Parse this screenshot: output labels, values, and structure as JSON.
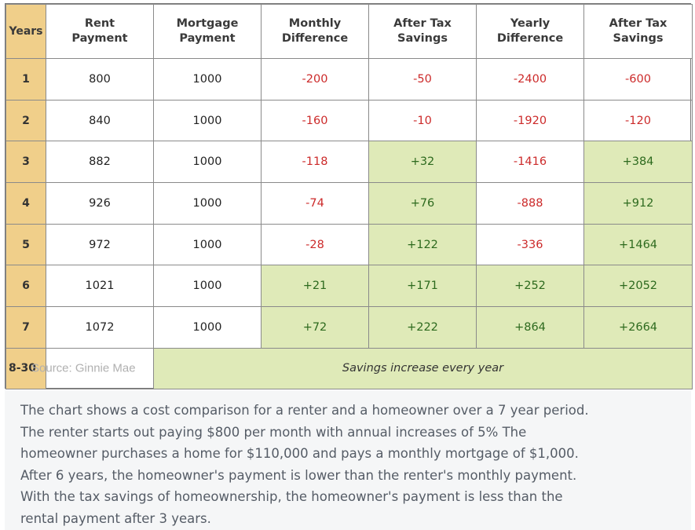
{
  "table": {
    "headers": {
      "years": "Years",
      "rent": [
        "Rent",
        "Payment"
      ],
      "mortgage": [
        "Mortgage",
        "Payment"
      ],
      "monthly_diff": [
        "Monthly",
        "Difference"
      ],
      "after_tax_1": [
        "After Tax",
        "Savings"
      ],
      "yearly_diff": [
        "Yearly",
        "Difference"
      ],
      "after_tax_2": [
        "After Tax",
        "Savings"
      ]
    },
    "rows": [
      {
        "year": "1",
        "rent": "800",
        "mortgage": "1000",
        "monthly_diff": "-200",
        "after_tax_1": "-50",
        "yearly_diff": "-2400",
        "after_tax_2": "-600"
      },
      {
        "year": "2",
        "rent": "840",
        "mortgage": "1000",
        "monthly_diff": "-160",
        "after_tax_1": "-10",
        "yearly_diff": "-1920",
        "after_tax_2": "-120"
      },
      {
        "year": "3",
        "rent": "882",
        "mortgage": "1000",
        "monthly_diff": "-118",
        "after_tax_1": "+32",
        "yearly_diff": "-1416",
        "after_tax_2": "+384"
      },
      {
        "year": "4",
        "rent": "926",
        "mortgage": "1000",
        "monthly_diff": "-74",
        "after_tax_1": "+76",
        "yearly_diff": "-888",
        "after_tax_2": "+912"
      },
      {
        "year": "5",
        "rent": "972",
        "mortgage": "1000",
        "monthly_diff": "-28",
        "after_tax_1": "+122",
        "yearly_diff": "-336",
        "after_tax_2": "+1464"
      },
      {
        "year": "6",
        "rent": "1021",
        "mortgage": "1000",
        "monthly_diff": "+21",
        "after_tax_1": "+171",
        "yearly_diff": "+252",
        "after_tax_2": "+2052"
      },
      {
        "year": "7",
        "rent": "1072",
        "mortgage": "1000",
        "monthly_diff": "+72",
        "after_tax_1": "+222",
        "yearly_diff": "+864",
        "after_tax_2": "+2664"
      }
    ],
    "last_row": {
      "year": "8-30",
      "source": "Source: Ginnie Mae",
      "note": "Savings increase every year"
    },
    "colors": {
      "year_bg": "#f0cf8a",
      "positive_bg": "#dfeab8",
      "negative_text": "#cc2a2a",
      "positive_text": "#2d6a1e"
    }
  },
  "caption": {
    "lines": [
      "The chart shows a cost comparison for a renter and a homeowner over a 7 year period.",
      "The renter starts out paying $800 per month with annual increases of 5% The",
      "homeowner purchases a home for $110,000 and pays a monthly mortgage of $1,000.",
      "After 6 years, the homeowner's payment is lower than the renter's monthly payment.",
      "With the tax savings of homeownership, the homeowner's payment is less than the",
      "rental payment after 3 years."
    ]
  }
}
